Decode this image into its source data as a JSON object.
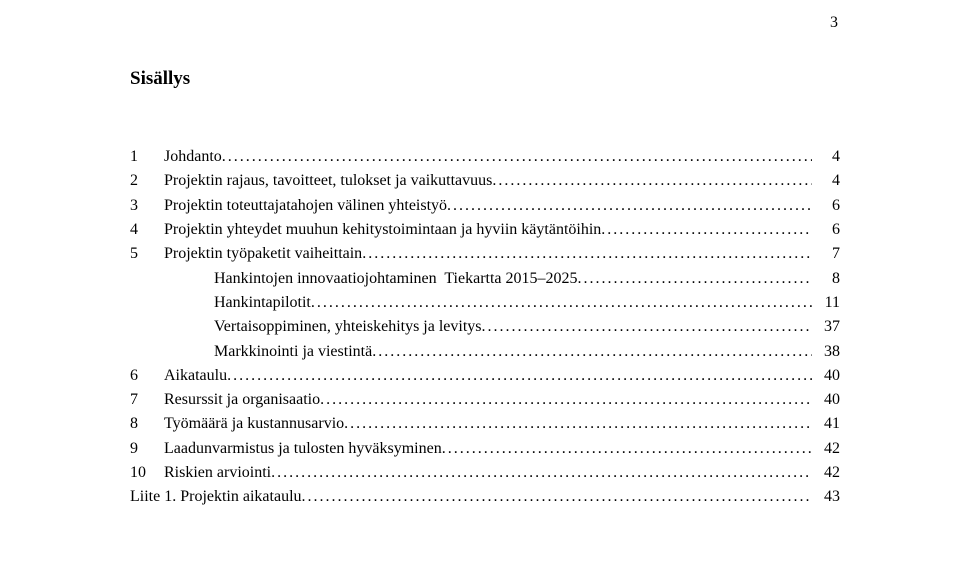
{
  "page_number_top": "3",
  "title": "Sisällys",
  "font": {
    "family": "Times New Roman",
    "title_size_pt": 14,
    "body_size_pt": 12,
    "title_weight": "bold",
    "line_height": 1.52
  },
  "colors": {
    "text": "#000000",
    "background": "#ffffff"
  },
  "entries": [
    {
      "num": "1",
      "label": "Johdanto",
      "page": "4",
      "indent": false
    },
    {
      "num": "2",
      "label": "Projektin rajaus, tavoitteet, tulokset ja vaikuttavuus",
      "page": "4",
      "indent": false
    },
    {
      "num": "3",
      "label": "Projektin toteuttajatahojen välinen yhteistyö",
      "page": "6",
      "indent": false
    },
    {
      "num": "4",
      "label": "Projektin yhteydet muuhun kehitystoimintaan ja hyviin käytäntöihin",
      "page": "6",
      "indent": false
    },
    {
      "num": "5",
      "label": "Projektin työpaketit vaiheittain",
      "page": "7",
      "indent": false
    },
    {
      "num": "",
      "label": "Hankintojen innovaatiojohtaminen  Tiekartta 2015–2025",
      "page": "8",
      "indent": true
    },
    {
      "num": "",
      "label": "Hankintapilotit",
      "page": "11",
      "indent": true
    },
    {
      "num": "",
      "label": "Vertaisoppiminen, yhteiskehitys ja levitys",
      "page": "37",
      "indent": true
    },
    {
      "num": "",
      "label": "Markkinointi ja viestintä",
      "page": "38",
      "indent": true
    },
    {
      "num": "6",
      "label": "Aikataulu",
      "page": "40",
      "indent": false
    },
    {
      "num": "7",
      "label": "Resurssit ja organisaatio",
      "page": "40",
      "indent": false
    },
    {
      "num": "8",
      "label": "Työmäärä ja kustannusarvio",
      "page": "41",
      "indent": false
    },
    {
      "num": "9",
      "label": "Laadunvarmistus ja tulosten hyväksyminen",
      "page": "42",
      "indent": false
    },
    {
      "num": "10",
      "label": "Riskien arviointi",
      "page": "42",
      "indent": false
    },
    {
      "num": "",
      "label": "Liite 1. Projektin aikataulu",
      "page": "43",
      "indent": false,
      "no_num_col": true
    }
  ]
}
